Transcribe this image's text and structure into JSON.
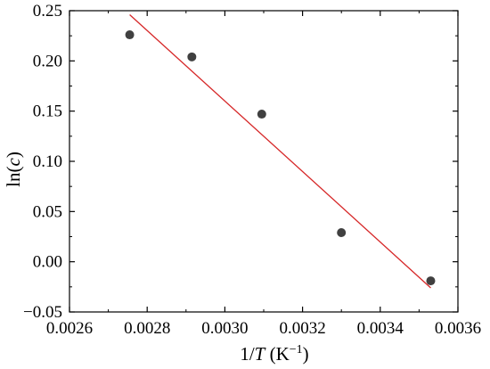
{
  "chart_data": {
    "type": "scatter",
    "xlabel": {
      "prefix": "1/",
      "var": "T",
      "unit_open": " (K",
      "unit_sup": "−1",
      "unit_close": ")"
    },
    "ylabel": {
      "prefix": "ln(",
      "var": "c",
      "suffix": ")"
    },
    "xlim": [
      0.0026,
      0.0036
    ],
    "ylim": [
      -0.05,
      0.25
    ],
    "x_ticks": [
      0.0026,
      0.0028,
      0.003,
      0.0032,
      0.0034,
      0.0036
    ],
    "x_tick_labels": [
      "0.0026",
      "0.0028",
      "0.0030",
      "0.0032",
      "0.0034",
      "0.0036"
    ],
    "y_ticks": [
      -0.05,
      0.0,
      0.05,
      0.1,
      0.15,
      0.2,
      0.25
    ],
    "y_tick_labels": [
      "−0.05",
      "0.00",
      "0.05",
      "0.10",
      "0.15",
      "0.20",
      "0.25"
    ],
    "grid": false,
    "series": [
      {
        "kind": "points",
        "color": "#404040",
        "x": [
          0.002755,
          0.002915,
          0.003095,
          0.0033,
          0.00353
        ],
        "y": [
          0.226,
          0.204,
          0.147,
          0.029,
          -0.019
        ]
      },
      {
        "kind": "fit-line",
        "color": "#d62728",
        "x": [
          0.002755,
          0.00353
        ],
        "y": [
          0.246,
          -0.026
        ]
      }
    ]
  }
}
